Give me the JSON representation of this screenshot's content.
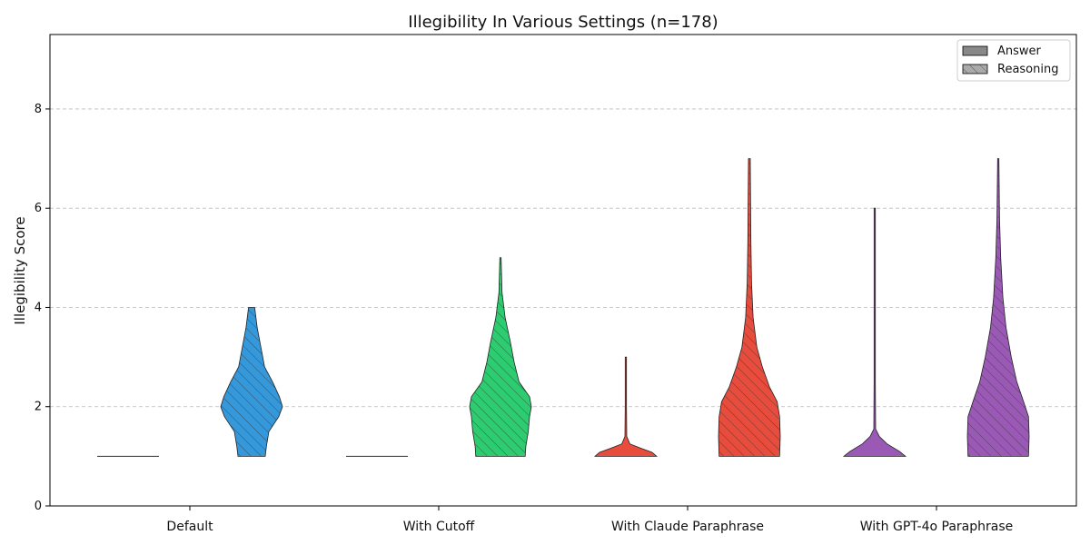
{
  "chart_data": {
    "type": "violin",
    "title": "Illegibility In Various Settings (n=178)",
    "xlabel": "",
    "ylabel": "Illegibility Score",
    "ylim": [
      0,
      9.5
    ],
    "yticks": [
      0,
      2,
      4,
      6,
      8
    ],
    "grid": "y dashed",
    "legend_position": "top-right",
    "legend": [
      {
        "label": "Answer",
        "hatch": false
      },
      {
        "label": "Reasoning",
        "hatch": true
      }
    ],
    "categories": [
      "Default",
      "With Cutoff",
      "With Claude Paraphrase",
      "With GPT-4o Paraphrase"
    ],
    "colors": {
      "Default": "#3498db",
      "With Cutoff": "#2ecc71",
      "With Claude Paraphrase": "#e74c3c",
      "With GPT-4o Paraphrase": "#9b59b6"
    },
    "violins": [
      {
        "category": "Default",
        "series": "Answer",
        "min": 1,
        "max": 1,
        "profile": [
          [
            1,
            1
          ]
        ]
      },
      {
        "category": "Default",
        "series": "Reasoning",
        "min": 1,
        "max": 4,
        "profile": [
          [
            1,
            0.44
          ],
          [
            1.2,
            0.48
          ],
          [
            1.5,
            0.56
          ],
          [
            1.8,
            0.88
          ],
          [
            2.0,
            1.0
          ],
          [
            2.2,
            0.9
          ],
          [
            2.5,
            0.68
          ],
          [
            2.8,
            0.42
          ],
          [
            3.2,
            0.3
          ],
          [
            3.6,
            0.18
          ],
          [
            4.0,
            0.1
          ]
        ]
      },
      {
        "category": "With Cutoff",
        "series": "Answer",
        "min": 1,
        "max": 1,
        "profile": [
          [
            1,
            1
          ]
        ]
      },
      {
        "category": "With Cutoff",
        "series": "Reasoning",
        "min": 1,
        "max": 5,
        "profile": [
          [
            1,
            0.8
          ],
          [
            1.2,
            0.82
          ],
          [
            1.5,
            0.9
          ],
          [
            1.8,
            0.94
          ],
          [
            2.0,
            1.0
          ],
          [
            2.2,
            0.94
          ],
          [
            2.5,
            0.6
          ],
          [
            2.9,
            0.44
          ],
          [
            3.3,
            0.32
          ],
          [
            3.8,
            0.15
          ],
          [
            4.3,
            0.05
          ],
          [
            5.0,
            0.02
          ]
        ]
      },
      {
        "category": "With Claude Paraphrase",
        "series": "Answer",
        "min": 1,
        "max": 3,
        "profile": [
          [
            1,
            1.0
          ],
          [
            1.08,
            0.85
          ],
          [
            1.16,
            0.5
          ],
          [
            1.25,
            0.13
          ],
          [
            1.4,
            0.03
          ],
          [
            2.0,
            0.02
          ],
          [
            3.0,
            0.02
          ]
        ]
      },
      {
        "category": "With Claude Paraphrase",
        "series": "Reasoning",
        "min": 1,
        "max": 7,
        "profile": [
          [
            1,
            0.98
          ],
          [
            1.4,
            1.0
          ],
          [
            1.8,
            0.98
          ],
          [
            2.1,
            0.9
          ],
          [
            2.4,
            0.65
          ],
          [
            2.8,
            0.42
          ],
          [
            3.2,
            0.24
          ],
          [
            3.8,
            0.12
          ],
          [
            4.5,
            0.07
          ],
          [
            5.3,
            0.05
          ],
          [
            6.0,
            0.04
          ],
          [
            7.0,
            0.03
          ]
        ]
      },
      {
        "category": "With GPT-4o Paraphrase",
        "series": "Answer",
        "min": 1,
        "max": 6,
        "profile": [
          [
            1,
            1.0
          ],
          [
            1.1,
            0.8
          ],
          [
            1.25,
            0.4
          ],
          [
            1.4,
            0.15
          ],
          [
            1.55,
            0.03
          ],
          [
            2.5,
            0.02
          ],
          [
            6.0,
            0.02
          ]
        ]
      },
      {
        "category": "With GPT-4o Paraphrase",
        "series": "Reasoning",
        "min": 1,
        "max": 7,
        "profile": [
          [
            1,
            0.98
          ],
          [
            1.4,
            1.0
          ],
          [
            1.8,
            0.98
          ],
          [
            2.1,
            0.82
          ],
          [
            2.5,
            0.6
          ],
          [
            3.0,
            0.42
          ],
          [
            3.6,
            0.25
          ],
          [
            4.2,
            0.15
          ],
          [
            5.0,
            0.08
          ],
          [
            5.8,
            0.04
          ],
          [
            7.0,
            0.02
          ]
        ]
      }
    ]
  }
}
